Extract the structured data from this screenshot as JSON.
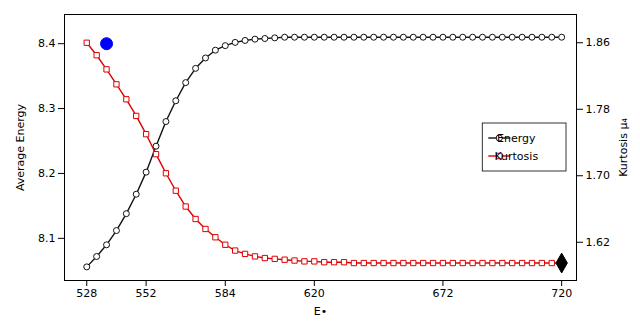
{
  "chart_data": {
    "type": "line",
    "xlabel": "E•",
    "ylabel": "Average Energy",
    "y2label": "Kurtosis μ₄",
    "xlim": [
      519,
      726
    ],
    "xticks": [
      528,
      552,
      584,
      620,
      672,
      720
    ],
    "ylim": [
      8.035,
      8.445
    ],
    "yticks": [
      8.1,
      8.2,
      8.3,
      8.4
    ],
    "y2lim": [
      1.574,
      1.894
    ],
    "y2ticks": [
      1.62,
      {
        "value": 1.7,
        "label": "1.70"
      },
      1.78,
      1.86
    ],
    "x": [
      528,
      532,
      536,
      540,
      544,
      548,
      552,
      556,
      560,
      564,
      568,
      572,
      576,
      580,
      584,
      588,
      592,
      596,
      600,
      604,
      608,
      612,
      616,
      620,
      624,
      628,
      632,
      636,
      640,
      644,
      648,
      652,
      656,
      660,
      664,
      668,
      672,
      676,
      680,
      684,
      688,
      692,
      696,
      700,
      704,
      708,
      712,
      716,
      720
    ],
    "series": [
      {
        "name": "Energy",
        "color": "#111111",
        "marker": "circle",
        "values": [
          8.056,
          8.072,
          8.09,
          8.112,
          8.138,
          8.168,
          8.202,
          8.242,
          8.28,
          8.312,
          8.34,
          8.362,
          8.378,
          8.39,
          8.397,
          8.402,
          8.405,
          8.407,
          8.408,
          8.409,
          8.41,
          8.41,
          8.41,
          8.41,
          8.41,
          8.41,
          8.41,
          8.41,
          8.41,
          8.41,
          8.41,
          8.41,
          8.41,
          8.41,
          8.41,
          8.41,
          8.41,
          8.41,
          8.41,
          8.41,
          8.41,
          8.41,
          8.41,
          8.41,
          8.41,
          8.41,
          8.41,
          8.41,
          8.41
        ]
      },
      {
        "name": "Kurtosis",
        "color": "#DD0000",
        "marker": "square",
        "axis": "y2",
        "values": [
          1.86,
          1.845,
          1.828,
          1.81,
          1.792,
          1.772,
          1.75,
          1.726,
          1.703,
          1.682,
          1.663,
          1.648,
          1.636,
          1.626,
          1.617,
          1.61,
          1.606,
          1.603,
          1.601,
          1.6,
          1.599,
          1.598,
          1.597,
          1.597,
          1.596,
          1.596,
          1.596,
          1.595,
          1.595,
          1.595,
          1.595,
          1.595,
          1.595,
          1.595,
          1.595,
          1.595,
          1.595,
          1.595,
          1.595,
          1.595,
          1.595,
          1.595,
          1.595,
          1.595,
          1.595,
          1.595,
          1.595,
          1.595,
          1.595
        ]
      },
      {
        "type": "scatter",
        "color": "blue",
        "marker": "circle",
        "x": [
          536
        ],
        "values": [
          8.4
        ]
      },
      {
        "type": "scatter",
        "color": "black",
        "marker": "diamond",
        "axis": "y2",
        "x": [
          720
        ],
        "values": [
          1.595
        ]
      }
    ],
    "legend": "right",
    "grid": false
  }
}
